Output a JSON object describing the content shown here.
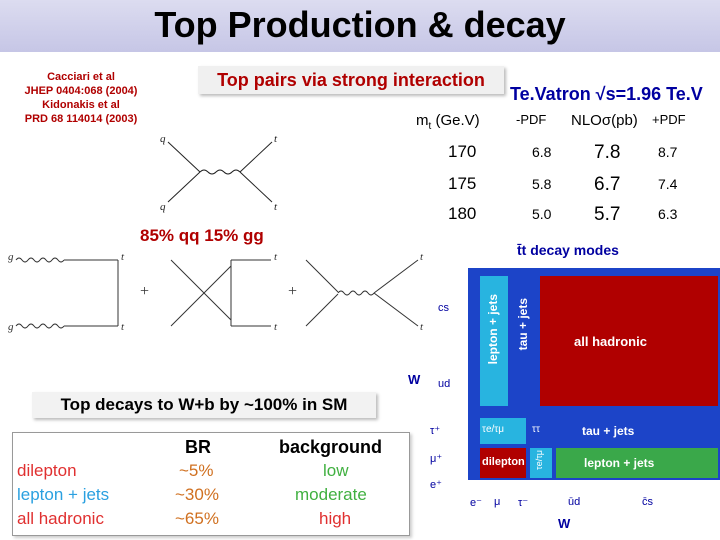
{
  "title": "Top Production & decay",
  "references": [
    "Cacciari et al",
    "JHEP 0404:068 (2004)",
    "Kidonakis et al",
    "PRD 68 114014 (2003)"
  ],
  "strong_label": "Top pairs via strong interaction",
  "tevatron_label": "Te.Vatron √s=1.96 Te.V",
  "xs_table": {
    "headers": [
      "m",
      "t",
      " (Ge.V)",
      "-PDF",
      "NLOσ(pb)",
      "+PDF"
    ],
    "rows": [
      [
        "170",
        "6.8",
        "7.8",
        "8.7"
      ],
      [
        "175",
        "5.8",
        "6.7",
        "7.4"
      ],
      [
        "180",
        "5.0",
        "5.7",
        "6.3"
      ]
    ]
  },
  "qq_gg_label": "85% qq 15% gg",
  "feynman": {
    "qq": {
      "q_in": "q",
      "qbar_in": "q",
      "t_out": "t",
      "tbar_out": "t"
    },
    "gg": {
      "g1": "g",
      "g2": "g",
      "t1": "t",
      "t2": "t",
      "plus": "+"
    }
  },
  "decays_label": "Top decays to W+b by ~100% in SM",
  "br_table": {
    "headers": [
      "",
      "BR",
      "background"
    ],
    "rows": [
      [
        "dilepton",
        "~5%",
        "low"
      ],
      [
        "lepton + jets",
        "~30%",
        "moderate"
      ],
      [
        "all hadronic",
        "~65%",
        "high"
      ]
    ],
    "row_colors": [
      "#e03030",
      "#2aa0e0",
      "#e03030"
    ],
    "col2_colors": [
      "#d07020",
      "#d07020",
      "#d07020"
    ],
    "col3_colors": [
      "#40b040",
      "#40b040",
      "#e03030"
    ]
  },
  "decay_modes": {
    "title": "t̄t decay modes",
    "w_plus": "W",
    "w_minus": "W",
    "row_labels": [
      "cs",
      "ud",
      "τ⁺",
      "μ⁺",
      "e⁺"
    ],
    "col_labels": [
      "e⁻",
      "μ",
      "τ⁻",
      "ūd",
      "c̄s"
    ],
    "regions": {
      "lepton_jets_v": "lepton + jets",
      "tau_jets_v": "tau + jets",
      "all_hadronic": "all hadronic",
      "tau_e_mu": "τe/τμ",
      "tau_tau": "ττ",
      "tau_jets_h": "tau + jets",
      "dilepton": "dilepton",
      "tau_e_v": "τe/τμ",
      "lepton_jets_h": "lepton + jets"
    },
    "colors": {
      "blue": "#1c44c8",
      "red": "#b00000",
      "green": "#3aa84a",
      "cyan": "#28b4e0"
    }
  }
}
